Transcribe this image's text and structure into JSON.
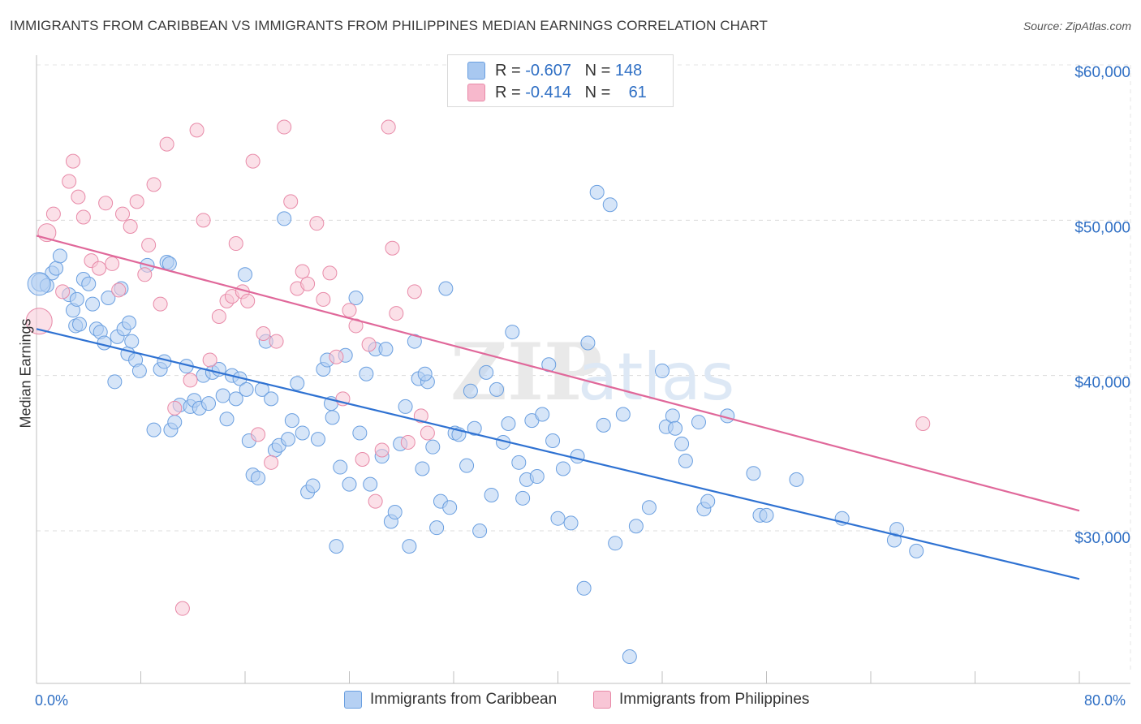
{
  "title": "IMMIGRANTS FROM CARIBBEAN VS IMMIGRANTS FROM PHILIPPINES MEDIAN EARNINGS CORRELATION CHART",
  "source": "Source: ZipAtlas.com",
  "watermark": "ZIPatlas",
  "legend": {
    "rows": [
      {
        "r_label": "R = ",
        "r_value": "-0.607",
        "n_label": "N = ",
        "n_value": "148",
        "color": "#a8c8f0",
        "border": "#6a9fe0"
      },
      {
        "r_label": "R = ",
        "r_value": "-0.414",
        "n_label": "N = ",
        "n_value": "61",
        "color": "#f7b8cc",
        "border": "#e88aa8"
      }
    ]
  },
  "chart_data": {
    "type": "scatter",
    "title": "IMMIGRANTS FROM CARIBBEAN VS IMMIGRANTS FROM PHILIPPINES MEDIAN EARNINGS CORRELATION CHART",
    "xlabel": "",
    "ylabel": "Median Earnings",
    "xlim": [
      0,
      80
    ],
    "ylim": [
      20000,
      62000
    ],
    "x_tick_labels": [
      "0.0%",
      "80.0%"
    ],
    "y_ticks": [
      30000,
      40000,
      50000,
      60000
    ],
    "y_tick_labels": [
      "$30,000",
      "$40,000",
      "$50,000",
      "$60,000"
    ],
    "grid": true,
    "legend_position": "bottom",
    "series": [
      {
        "name": "Immigrants from Caribbean",
        "color": "#6a9fe0",
        "fill": "#b5d0f3",
        "trend": {
          "x": [
            0,
            80
          ],
          "y": [
            43000,
            26900
          ]
        },
        "points": [
          [
            0.3,
            46000
          ],
          [
            0.8,
            45800
          ],
          [
            1.2,
            46600
          ],
          [
            1.5,
            46900
          ],
          [
            1.8,
            47700
          ],
          [
            2.5,
            45200
          ],
          [
            2.8,
            44200
          ],
          [
            3.0,
            43200
          ],
          [
            3.3,
            43300
          ],
          [
            3.6,
            46200
          ],
          [
            4.0,
            45900
          ],
          [
            4.3,
            44600
          ],
          [
            4.6,
            43000
          ],
          [
            4.9,
            42800
          ],
          [
            5.2,
            42100
          ],
          [
            5.5,
            45000
          ],
          [
            6.0,
            39600
          ],
          [
            6.2,
            42500
          ],
          [
            6.5,
            45600
          ],
          [
            6.7,
            43000
          ],
          [
            7.0,
            41400
          ],
          [
            7.3,
            42200
          ],
          [
            7.6,
            41000
          ],
          [
            7.9,
            40300
          ],
          [
            8.5,
            47100
          ],
          [
            9.0,
            36500
          ],
          [
            9.5,
            40400
          ],
          [
            9.8,
            40900
          ],
          [
            10.0,
            47300
          ],
          [
            10.3,
            36500
          ],
          [
            10.6,
            37000
          ],
          [
            11.0,
            38100
          ],
          [
            11.5,
            40600
          ],
          [
            11.8,
            38000
          ],
          [
            12.1,
            38400
          ],
          [
            12.5,
            37900
          ],
          [
            12.8,
            40000
          ],
          [
            13.2,
            38200
          ],
          [
            13.5,
            40200
          ],
          [
            14.0,
            40400
          ],
          [
            14.3,
            38700
          ],
          [
            14.6,
            37200
          ],
          [
            15.0,
            40000
          ],
          [
            15.3,
            38500
          ],
          [
            15.6,
            39800
          ],
          [
            16.0,
            46500
          ],
          [
            16.3,
            35800
          ],
          [
            16.6,
            33600
          ],
          [
            17.0,
            33400
          ],
          [
            17.3,
            39100
          ],
          [
            17.6,
            42200
          ],
          [
            18.0,
            38500
          ],
          [
            18.3,
            35200
          ],
          [
            18.6,
            35500
          ],
          [
            19.0,
            50100
          ],
          [
            19.3,
            35900
          ],
          [
            19.6,
            37100
          ],
          [
            20.0,
            39500
          ],
          [
            20.4,
            36300
          ],
          [
            20.8,
            32500
          ],
          [
            21.2,
            32900
          ],
          [
            21.6,
            35900
          ],
          [
            22.0,
            40400
          ],
          [
            22.3,
            41000
          ],
          [
            22.7,
            37300
          ],
          [
            23.0,
            29000
          ],
          [
            23.3,
            34100
          ],
          [
            23.7,
            41300
          ],
          [
            24.0,
            33000
          ],
          [
            24.5,
            45000
          ],
          [
            24.8,
            36300
          ],
          [
            25.3,
            40100
          ],
          [
            25.6,
            33000
          ],
          [
            26.0,
            41700
          ],
          [
            26.5,
            34800
          ],
          [
            26.8,
            41700
          ],
          [
            27.2,
            30600
          ],
          [
            27.5,
            31200
          ],
          [
            27.9,
            35600
          ],
          [
            28.3,
            38000
          ],
          [
            28.6,
            29000
          ],
          [
            29.0,
            42200
          ],
          [
            29.3,
            39800
          ],
          [
            29.6,
            34000
          ],
          [
            30.0,
            39600
          ],
          [
            30.4,
            35400
          ],
          [
            30.7,
            30200
          ],
          [
            31.0,
            31900
          ],
          [
            31.4,
            45600
          ],
          [
            31.7,
            31500
          ],
          [
            32.1,
            36300
          ],
          [
            32.4,
            36200
          ],
          [
            33.0,
            34200
          ],
          [
            33.3,
            39000
          ],
          [
            33.6,
            36600
          ],
          [
            34.0,
            30000
          ],
          [
            34.5,
            40200
          ],
          [
            34.9,
            32300
          ],
          [
            35.3,
            39100
          ],
          [
            35.8,
            35700
          ],
          [
            36.2,
            36900
          ],
          [
            36.5,
            42800
          ],
          [
            37.0,
            34400
          ],
          [
            37.3,
            32100
          ],
          [
            37.6,
            33300
          ],
          [
            38.0,
            37100
          ],
          [
            38.4,
            33500
          ],
          [
            38.8,
            37500
          ],
          [
            39.3,
            40700
          ],
          [
            39.6,
            35800
          ],
          [
            40.0,
            30800
          ],
          [
            40.4,
            34000
          ],
          [
            41.0,
            30500
          ],
          [
            41.5,
            34800
          ],
          [
            42.0,
            26300
          ],
          [
            42.3,
            42100
          ],
          [
            43.0,
            51800
          ],
          [
            43.5,
            36800
          ],
          [
            44.0,
            51000
          ],
          [
            44.4,
            29200
          ],
          [
            45.0,
            37500
          ],
          [
            46.0,
            30300
          ],
          [
            47.0,
            31500
          ],
          [
            48.0,
            40300
          ],
          [
            48.3,
            36700
          ],
          [
            48.8,
            37400
          ],
          [
            49.0,
            36600
          ],
          [
            49.5,
            35600
          ],
          [
            49.8,
            34500
          ],
          [
            50.8,
            37000
          ],
          [
            51.2,
            31400
          ],
          [
            51.5,
            31900
          ],
          [
            53.0,
            37400
          ],
          [
            55.0,
            33700
          ],
          [
            55.5,
            31000
          ],
          [
            56.0,
            31000
          ],
          [
            58.3,
            33300
          ],
          [
            61.8,
            30800
          ],
          [
            65.8,
            29400
          ],
          [
            66.0,
            30100
          ],
          [
            67.5,
            28700
          ],
          [
            45.5,
            21900
          ],
          [
            10.2,
            47200
          ],
          [
            16.1,
            39100
          ],
          [
            29.8,
            40100
          ],
          [
            7.1,
            43400
          ],
          [
            3.1,
            44900
          ],
          [
            22.6,
            38200
          ]
        ]
      },
      {
        "name": "Immigrants from Philippines",
        "color": "#e88aa8",
        "fill": "#f8c6d6",
        "trend": {
          "x": [
            0,
            80
          ],
          "y": [
            49000,
            31300
          ]
        },
        "points": [
          [
            0.8,
            49200
          ],
          [
            1.3,
            50400
          ],
          [
            2.0,
            45400
          ],
          [
            2.5,
            52500
          ],
          [
            2.8,
            53800
          ],
          [
            3.2,
            51500
          ],
          [
            3.6,
            50200
          ],
          [
            4.2,
            47400
          ],
          [
            4.8,
            46900
          ],
          [
            5.3,
            51100
          ],
          [
            5.8,
            47200
          ],
          [
            6.3,
            45500
          ],
          [
            6.6,
            50400
          ],
          [
            7.2,
            49600
          ],
          [
            7.7,
            51200
          ],
          [
            8.3,
            46500
          ],
          [
            8.6,
            48400
          ],
          [
            9.0,
            52300
          ],
          [
            9.5,
            44600
          ],
          [
            10.0,
            54900
          ],
          [
            10.6,
            37900
          ],
          [
            11.2,
            25000
          ],
          [
            11.8,
            39700
          ],
          [
            12.3,
            55800
          ],
          [
            12.8,
            50000
          ],
          [
            13.3,
            41000
          ],
          [
            14.0,
            43800
          ],
          [
            14.6,
            44800
          ],
          [
            15.0,
            45100
          ],
          [
            15.3,
            48500
          ],
          [
            15.8,
            45400
          ],
          [
            16.2,
            44800
          ],
          [
            16.6,
            53800
          ],
          [
            17.0,
            36200
          ],
          [
            17.4,
            42700
          ],
          [
            18.0,
            34400
          ],
          [
            18.4,
            42200
          ],
          [
            19.0,
            56000
          ],
          [
            19.5,
            51200
          ],
          [
            20.0,
            45600
          ],
          [
            20.4,
            46700
          ],
          [
            20.8,
            45900
          ],
          [
            21.5,
            49800
          ],
          [
            22.0,
            44900
          ],
          [
            22.5,
            46600
          ],
          [
            23.0,
            41200
          ],
          [
            23.5,
            38500
          ],
          [
            24.0,
            44200
          ],
          [
            24.5,
            43200
          ],
          [
            25.0,
            34600
          ],
          [
            25.5,
            42000
          ],
          [
            26.0,
            31900
          ],
          [
            26.5,
            35200
          ],
          [
            27.0,
            56000
          ],
          [
            27.3,
            48200
          ],
          [
            27.6,
            44000
          ],
          [
            28.5,
            35700
          ],
          [
            29.0,
            45400
          ],
          [
            29.5,
            37400
          ],
          [
            30.0,
            36300
          ],
          [
            68.0,
            36900
          ]
        ]
      }
    ]
  },
  "x_axis": {
    "left_label": "0.0%",
    "right_label": "80.0%"
  },
  "y_axis_label": "Median Earnings",
  "bottom_legend": [
    {
      "label": "Immigrants from Caribbean",
      "color": "#b5d0f3",
      "border": "#6a9fe0"
    },
    {
      "label": "Immigrants from Philippines",
      "color": "#f8c6d6",
      "border": "#e88aa8"
    }
  ]
}
